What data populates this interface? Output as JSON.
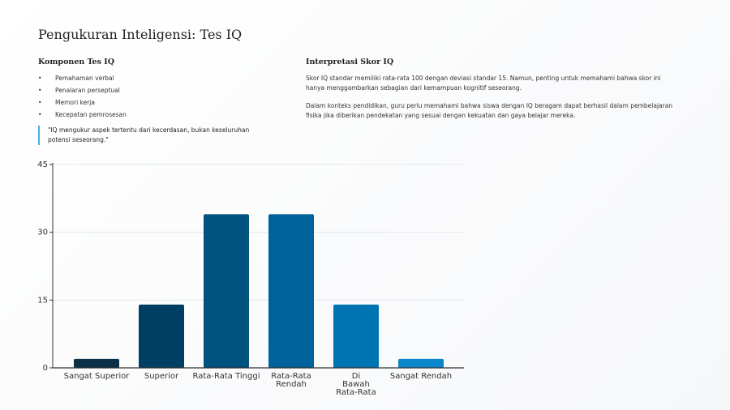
{
  "header": {
    "title": "Pengukuran Inteligensi: Tes IQ"
  },
  "left": {
    "heading": "Komponen Tes IQ",
    "items": [
      "Pemahaman verbal",
      "Penalaran perseptual",
      "Memori kerja",
      "Kecepatan pemrosesan"
    ],
    "quote": "\"IQ mengukur aspek tertentu dari kecerdasan, bukan keseluruhan potensi seseorang.\""
  },
  "right": {
    "heading": "Interpretasi Skor IQ",
    "paragraphs": [
      "Skor IQ standar memiliki rata-rata 100 dengan deviasi standar 15. Namun, penting untuk memahami bahwa skor ini hanya menggambarkan sebagian dari kemampuan kognitif seseorang.",
      "Dalam konteks pendidikan, guru perlu memahami bahwa siswa dengan IQ beragam dapat berhasil dalam pembelajaran fisika jika diberikan pendekatan yang sesuai dengan kekuatan dan gaya belajar mereka."
    ]
  },
  "chart_data": {
    "type": "bar",
    "categories": [
      "Sangat Superior",
      "Superior",
      "Rata-Rata Tinggi",
      "Rata-Rata\nRendah",
      "Di\nBawah\nRata-Rata",
      "Sangat Rendah"
    ],
    "values": [
      2,
      14,
      34,
      34,
      14,
      2
    ],
    "colors": [
      "#0d3049",
      "#003f63",
      "#00527f",
      "#00629a",
      "#0074b3",
      "#0a86cc"
    ],
    "ylim": [
      0,
      45
    ],
    "yticks": [
      0,
      15,
      30,
      45
    ],
    "grid": true
  }
}
